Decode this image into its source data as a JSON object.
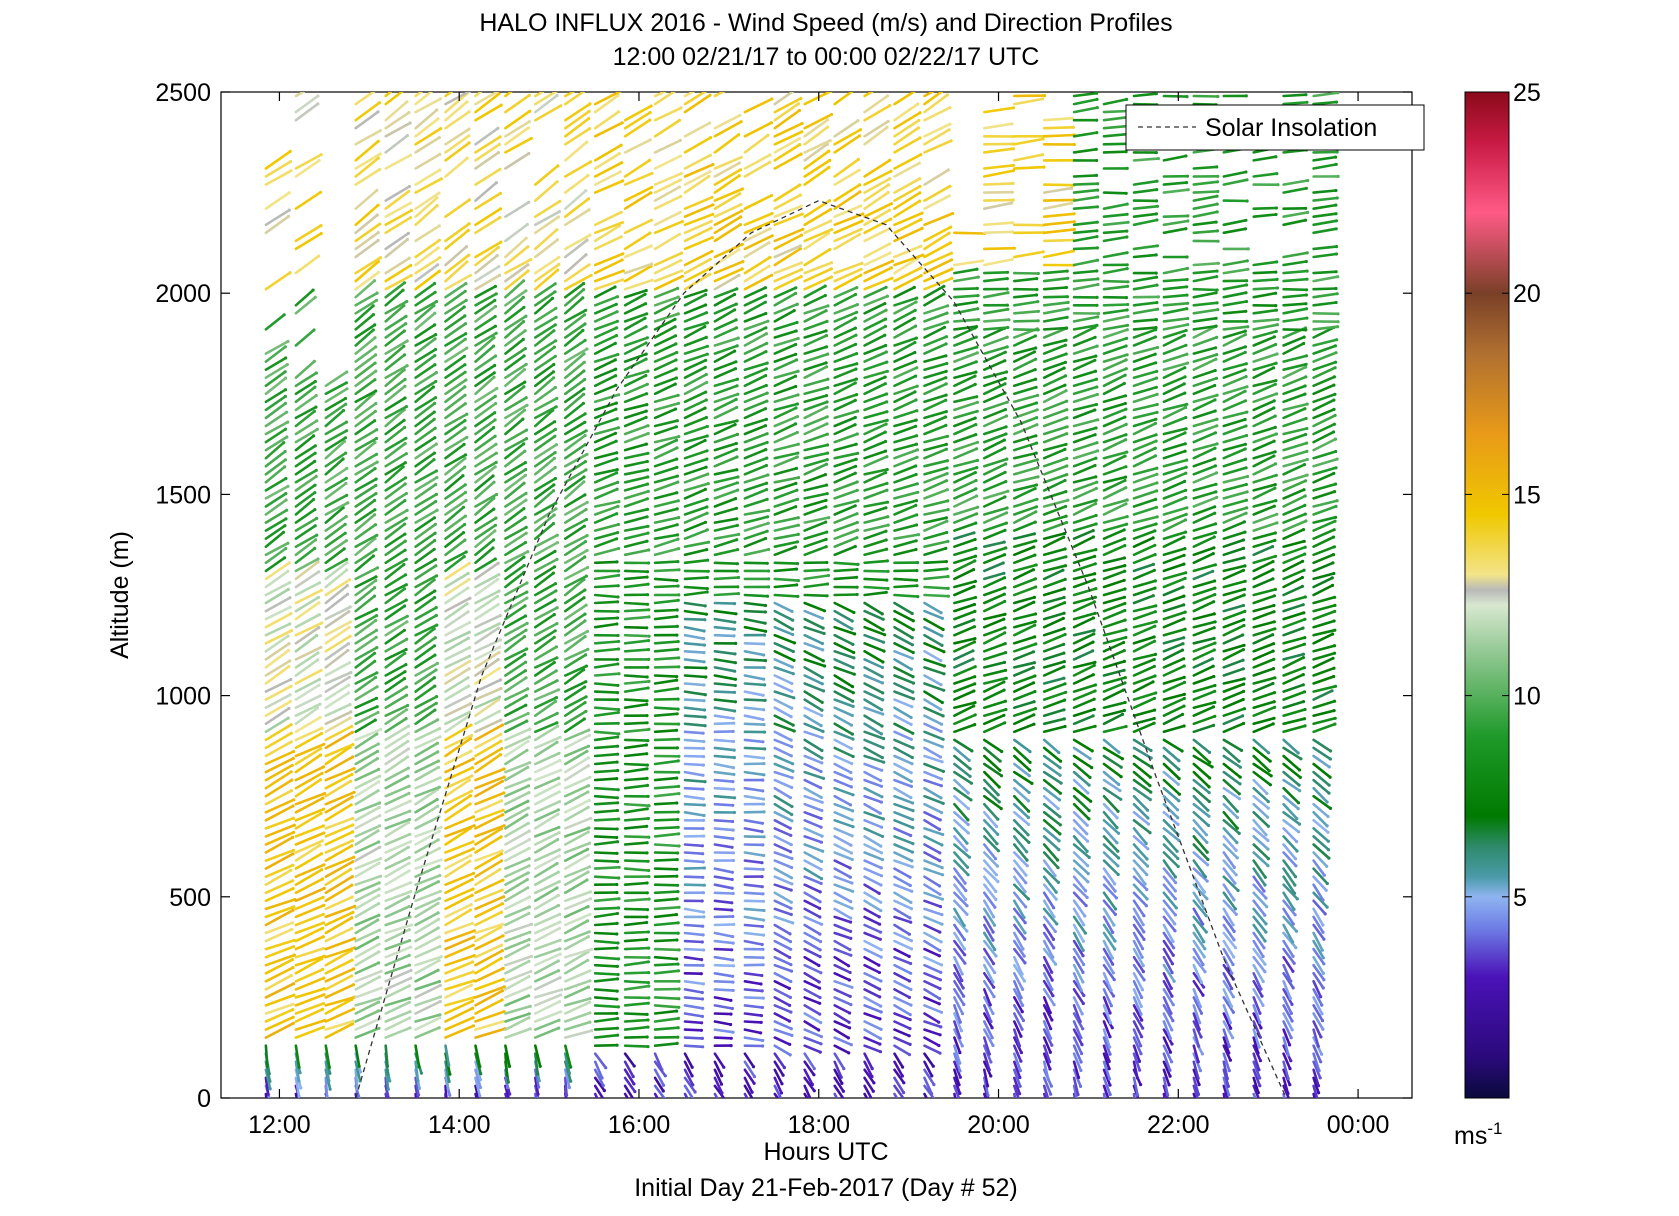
{
  "chart_data": {
    "type": "wind-barb-profile",
    "title": "HALO INFLUX 2016 - Wind Speed (m/s) and Direction Profiles",
    "subtitle": "12:00 02/21/17 to 00:00 02/22/17  UTC",
    "xlabel": "Hours UTC",
    "xlabel2": "Initial Day 21-Feb-2017 (Day # 52)",
    "ylabel": "Altitude (m)",
    "x_tick_labels": [
      "12:00",
      "14:00",
      "16:00",
      "18:00",
      "20:00",
      "22:00",
      "00:00"
    ],
    "x_tick_hours": [
      12,
      14,
      16,
      18,
      20,
      22,
      24
    ],
    "xlim": [
      11.35,
      24.6
    ],
    "y_ticks": [
      0,
      500,
      1000,
      1500,
      2000,
      2500
    ],
    "ylim": [
      0,
      2500
    ],
    "colorbar": {
      "label": "ms",
      "label_exponent": "-1",
      "ticks": [
        5,
        10,
        15,
        20,
        25
      ],
      "range": [
        0,
        25
      ]
    },
    "legend": {
      "entries": [
        "Solar Insolation"
      ],
      "position": "top-right"
    },
    "solar_insolation": {
      "x": [
        12.85,
        13.5,
        14.25,
        15.0,
        15.75,
        16.5,
        17.25,
        18.0,
        18.75,
        19.5,
        20.25,
        21.0,
        21.75,
        22.5,
        23.2
      ],
      "y": [
        0,
        500,
        1050,
        1450,
        1760,
        2000,
        2150,
        2230,
        2170,
        1980,
        1680,
        1270,
        800,
        350,
        0
      ]
    },
    "profiles_start_hour": 11.85,
    "profiles_step_hours": 0.333,
    "profiles_count": 36,
    "speed_bands": [
      {
        "range": "0-5 m/s",
        "color": "#4a12b8"
      },
      {
        "range": "5-7 m/s",
        "color": "#2e8a96"
      },
      {
        "range": "7-10 m/s",
        "color": "#1f9a2a"
      },
      {
        "range": "10-13 m/s",
        "color": "#9ccc9c"
      },
      {
        "range": "13-17 m/s",
        "color": "#f0b400"
      },
      {
        "range": "17-21 m/s",
        "color": "#a86a32"
      },
      {
        "range": "21-25 m/s",
        "color": "#b21838"
      }
    ]
  }
}
